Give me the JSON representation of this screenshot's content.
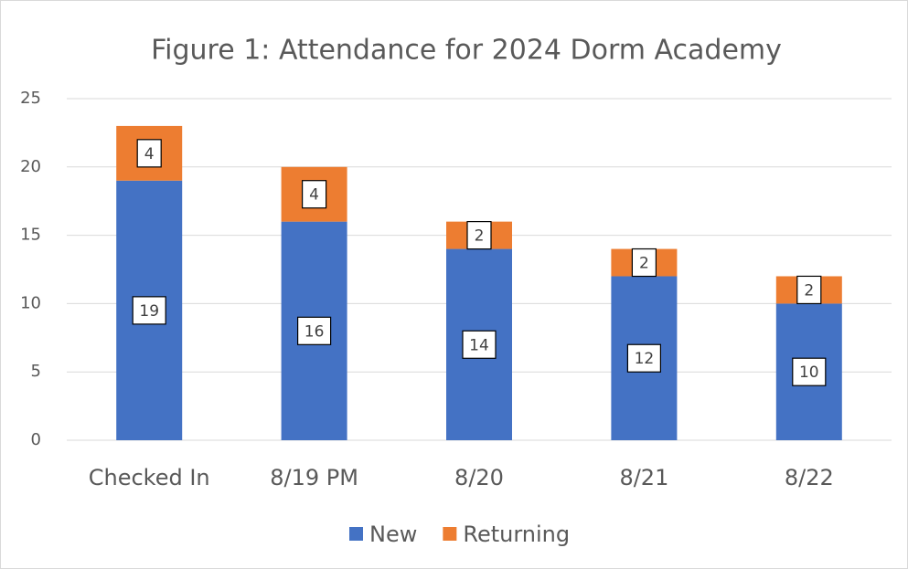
{
  "chart_data": {
    "type": "bar",
    "stacked": true,
    "title": "Figure 1: Attendance for 2024 Dorm Academy",
    "categories": [
      "Checked In",
      "8/19 PM",
      "8/20",
      "8/21",
      "8/22"
    ],
    "series": [
      {
        "name": "New",
        "color": "#4472c4",
        "values": [
          19,
          16,
          14,
          12,
          10
        ]
      },
      {
        "name": "Returning",
        "color": "#ed7d31",
        "values": [
          4,
          4,
          2,
          2,
          2
        ]
      }
    ],
    "ylim": [
      0,
      25
    ],
    "yticks": [
      0,
      5,
      10,
      15,
      20,
      25
    ],
    "grid": true,
    "legend": "bottom"
  }
}
